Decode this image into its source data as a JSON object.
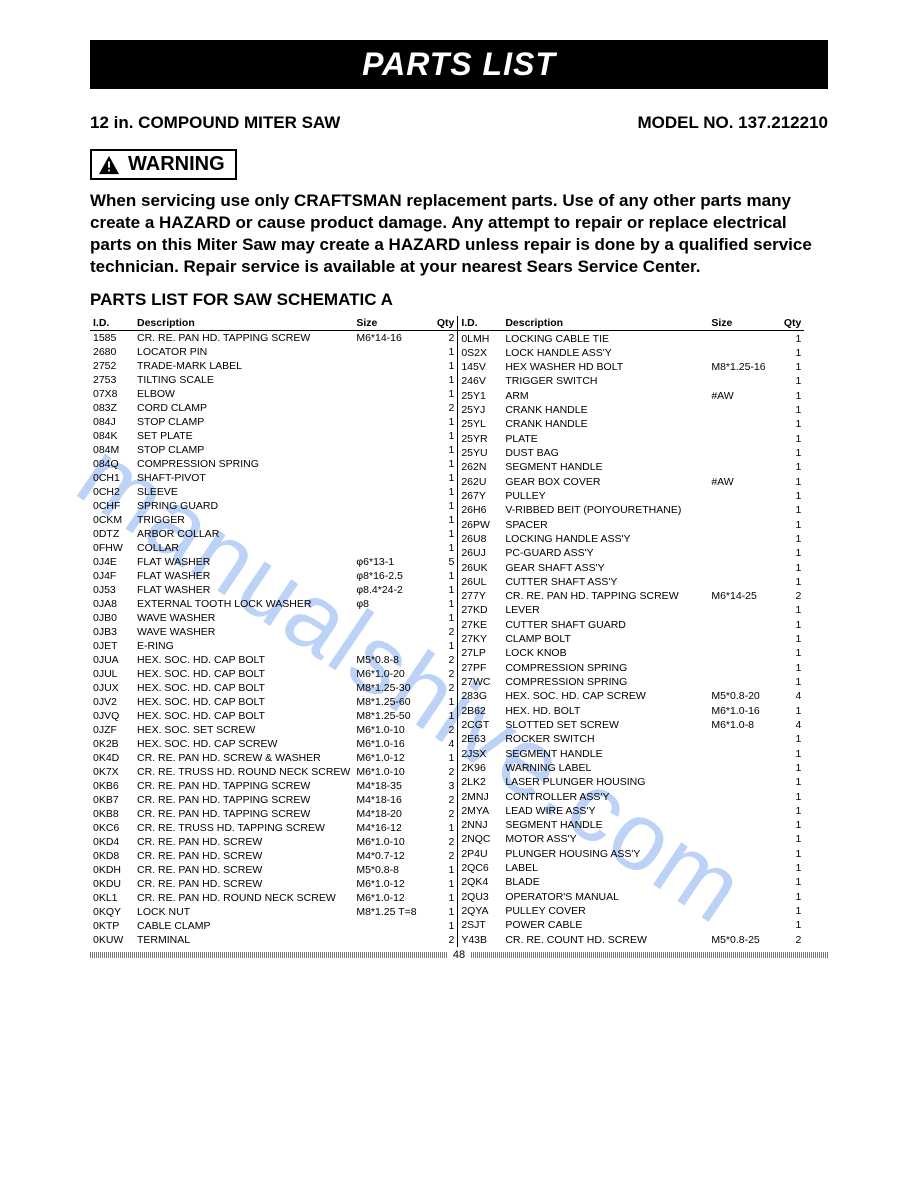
{
  "header": {
    "title": "PARTS LIST",
    "product": "12 in. COMPOUND MITER SAW",
    "model_label": "MODEL NO. 137.212210"
  },
  "warning": {
    "label": "WARNING",
    "text": "When servicing use only CRAFTSMAN replacement parts. Use of any other parts many create a HAZARD or cause product damage. Any attempt to repair or replace electrical parts on this Miter Saw may create a HAZARD unless repair is done by a qualified service technician. Repair service is available at your nearest Sears Service Center."
  },
  "schematic_title": "PARTS LIST FOR SAW SCHEMATIC A",
  "columns": {
    "id": "I.D.",
    "desc": "Description",
    "size": "Size",
    "qty": "Qty"
  },
  "left": [
    {
      "id": "1585",
      "desc": "CR. RE. PAN HD. TAPPING SCREW",
      "size": "M6*14-16",
      "qty": "2"
    },
    {
      "id": "2680",
      "desc": "LOCATOR PIN",
      "size": "",
      "qty": "1"
    },
    {
      "id": "2752",
      "desc": "TRADE-MARK LABEL",
      "size": "",
      "qty": "1"
    },
    {
      "id": "2753",
      "desc": "TILTING SCALE",
      "size": "",
      "qty": "1"
    },
    {
      "id": "07X8",
      "desc": "ELBOW",
      "size": "",
      "qty": "1"
    },
    {
      "id": "083Z",
      "desc": "CORD CLAMP",
      "size": "",
      "qty": "2"
    },
    {
      "id": "084J",
      "desc": "STOP CLAMP",
      "size": "",
      "qty": "1"
    },
    {
      "id": "084K",
      "desc": "SET PLATE",
      "size": "",
      "qty": "1"
    },
    {
      "id": "084M",
      "desc": "STOP CLAMP",
      "size": "",
      "qty": "1"
    },
    {
      "id": "084Q",
      "desc": "COMPRESSION SPRING",
      "size": "",
      "qty": "1"
    },
    {
      "id": "0CH1",
      "desc": "SHAFT-PIVOT",
      "size": "",
      "qty": "1"
    },
    {
      "id": "0CH2",
      "desc": "SLEEVE",
      "size": "",
      "qty": "1"
    },
    {
      "id": "0CHF",
      "desc": "SPRING GUARD",
      "size": "",
      "qty": "1"
    },
    {
      "id": "0CKM",
      "desc": "TRIGGER",
      "size": "",
      "qty": "1"
    },
    {
      "id": "0DTZ",
      "desc": "ARBOR COLLAR",
      "size": "",
      "qty": "1"
    },
    {
      "id": "0FHW",
      "desc": "COLLAR",
      "size": "",
      "qty": "1"
    },
    {
      "id": "0J4E",
      "desc": "FLAT WASHER",
      "size": "φ6*13-1",
      "qty": "5"
    },
    {
      "id": "0J4F",
      "desc": "FLAT WASHER",
      "size": "φ8*16-2.5",
      "qty": "1"
    },
    {
      "id": "0J53",
      "desc": "FLAT WASHER",
      "size": "φ8.4*24-2",
      "qty": "1"
    },
    {
      "id": "0JA8",
      "desc": "EXTERNAL TOOTH LOCK WASHER",
      "size": "φ8",
      "qty": "1"
    },
    {
      "id": "0JB0",
      "desc": "WAVE WASHER",
      "size": "",
      "qty": "1"
    },
    {
      "id": "0JB3",
      "desc": "WAVE WASHER",
      "size": "",
      "qty": "2"
    },
    {
      "id": "0JET",
      "desc": "E-RING",
      "size": "",
      "qty": "1"
    },
    {
      "id": "0JUA",
      "desc": "HEX. SOC. HD. CAP BOLT",
      "size": "M5*0.8-8",
      "qty": "2"
    },
    {
      "id": "0JUL",
      "desc": "HEX. SOC. HD. CAP BOLT",
      "size": "M6*1.0-20",
      "qty": "2"
    },
    {
      "id": "0JUX",
      "desc": "HEX. SOC. HD. CAP BOLT",
      "size": "M8*1.25-30",
      "qty": "2"
    },
    {
      "id": "0JV2",
      "desc": "HEX. SOC. HD. CAP BOLT",
      "size": "M8*1.25-60",
      "qty": "1"
    },
    {
      "id": "0JVQ",
      "desc": "HEX. SOC. HD. CAP BOLT",
      "size": "M8*1.25-50",
      "qty": "1"
    },
    {
      "id": "0JZF",
      "desc": "HEX. SOC. SET SCREW",
      "size": "M6*1.0-10",
      "qty": "2"
    },
    {
      "id": "0K2B",
      "desc": "HEX. SOC. HD. CAP SCREW",
      "size": "M6*1.0-16",
      "qty": "4"
    },
    {
      "id": "0K4D",
      "desc": "CR. RE. PAN HD. SCREW & WASHER",
      "size": "M6*1.0-12",
      "qty": "1"
    },
    {
      "id": "0K7X",
      "desc": "CR. RE. TRUSS HD. ROUND NECK SCREW",
      "size": "M6*1.0-10",
      "qty": "2"
    },
    {
      "id": "0KB6",
      "desc": "CR. RE. PAN HD. TAPPING SCREW",
      "size": "M4*18-35",
      "qty": "3"
    },
    {
      "id": "0KB7",
      "desc": "CR. RE. PAN HD. TAPPING SCREW",
      "size": "M4*18-16",
      "qty": "2"
    },
    {
      "id": "0KB8",
      "desc": "CR. RE. PAN HD. TAPPING SCREW",
      "size": "M4*18-20",
      "qty": "2"
    },
    {
      "id": "0KC6",
      "desc": "CR. RE. TRUSS HD. TAPPING SCREW",
      "size": "M4*16-12",
      "qty": "1"
    },
    {
      "id": "0KD4",
      "desc": "CR. RE. PAN HD. SCREW",
      "size": "M6*1.0-10",
      "qty": "2"
    },
    {
      "id": "0KD8",
      "desc": "CR. RE. PAN HD. SCREW",
      "size": "M4*0.7-12",
      "qty": "2"
    },
    {
      "id": "0KDH",
      "desc": "CR. RE. PAN HD. SCREW",
      "size": "M5*0.8-8",
      "qty": "1"
    },
    {
      "id": "0KDU",
      "desc": "CR. RE. PAN HD. SCREW",
      "size": "M6*1.0-12",
      "qty": "1"
    },
    {
      "id": "0KL1",
      "desc": "CR. RE. PAN HD. ROUND NECK SCREW",
      "size": "M6*1.0-12",
      "qty": "1"
    },
    {
      "id": "0KQY",
      "desc": "LOCK NUT",
      "size": "M8*1.25 T=8",
      "qty": "1"
    },
    {
      "id": "0KTP",
      "desc": "CABLE CLAMP",
      "size": "",
      "qty": "1"
    },
    {
      "id": "0KUW",
      "desc": "TERMINAL",
      "size": "",
      "qty": "2"
    }
  ],
  "right": [
    {
      "id": "0LMH",
      "desc": "LOCKING CABLE TIE",
      "size": "",
      "qty": "1"
    },
    {
      "id": "0S2X",
      "desc": "LOCK HANDLE ASS'Y",
      "size": "",
      "qty": "1"
    },
    {
      "id": "145V",
      "desc": "HEX WASHER HD BOLT",
      "size": "M8*1.25-16",
      "qty": "1"
    },
    {
      "id": "246V",
      "desc": "TRIGGER SWITCH",
      "size": "",
      "qty": "1"
    },
    {
      "id": "25Y1",
      "desc": "ARM",
      "size": "#AW",
      "qty": "1"
    },
    {
      "id": "25YJ",
      "desc": "CRANK HANDLE",
      "size": "",
      "qty": "1"
    },
    {
      "id": "25YL",
      "desc": "CRANK HANDLE",
      "size": "",
      "qty": "1"
    },
    {
      "id": "25YR",
      "desc": "PLATE",
      "size": "",
      "qty": "1"
    },
    {
      "id": "25YU",
      "desc": "DUST BAG",
      "size": "",
      "qty": "1"
    },
    {
      "id": "262N",
      "desc": "SEGMENT HANDLE",
      "size": "",
      "qty": "1"
    },
    {
      "id": "262U",
      "desc": "GEAR BOX COVER",
      "size": "#AW",
      "qty": "1"
    },
    {
      "id": "267Y",
      "desc": "PULLEY",
      "size": "",
      "qty": "1"
    },
    {
      "id": "26H6",
      "desc": "V-RIBBED BEIT (POIYOURETHANE)",
      "size": "",
      "qty": "1"
    },
    {
      "id": "26PW",
      "desc": "SPACER",
      "size": "",
      "qty": "1"
    },
    {
      "id": "26U8",
      "desc": "LOCKING HANDLE ASS'Y",
      "size": "",
      "qty": "1"
    },
    {
      "id": "26UJ",
      "desc": "PC-GUARD ASS'Y",
      "size": "",
      "qty": "1"
    },
    {
      "id": "26UK",
      "desc": "GEAR SHAFT ASS'Y",
      "size": "",
      "qty": "1"
    },
    {
      "id": "26UL",
      "desc": "CUTTER SHAFT ASS'Y",
      "size": "",
      "qty": "1"
    },
    {
      "id": "277Y",
      "desc": "CR. RE. PAN HD. TAPPING SCREW",
      "size": "M6*14-25",
      "qty": "2"
    },
    {
      "id": "27KD",
      "desc": "LEVER",
      "size": "",
      "qty": "1"
    },
    {
      "id": "27KE",
      "desc": "CUTTER SHAFT GUARD",
      "size": "",
      "qty": "1"
    },
    {
      "id": "27KY",
      "desc": "CLAMP BOLT",
      "size": "",
      "qty": "1"
    },
    {
      "id": "27LP",
      "desc": "LOCK KNOB",
      "size": "",
      "qty": "1"
    },
    {
      "id": "27PF",
      "desc": "COMPRESSION SPRING",
      "size": "",
      "qty": "1"
    },
    {
      "id": "27WC",
      "desc": "COMPRESSION SPRING",
      "size": "",
      "qty": "1"
    },
    {
      "id": "283G",
      "desc": "HEX. SOC. HD. CAP SCREW",
      "size": "M5*0.8-20",
      "qty": "4"
    },
    {
      "id": "2B62",
      "desc": "HEX. HD. BOLT",
      "size": "M6*1.0-16",
      "qty": "1"
    },
    {
      "id": "2CGT",
      "desc": "SLOTTED SET SCREW",
      "size": "M6*1.0-8",
      "qty": "4"
    },
    {
      "id": "2E63",
      "desc": "ROCKER SWITCH",
      "size": "",
      "qty": "1"
    },
    {
      "id": "2JSX",
      "desc": "SEGMENT HANDLE",
      "size": "",
      "qty": "1"
    },
    {
      "id": "2K96",
      "desc": "WARNING LABEL",
      "size": "",
      "qty": "1"
    },
    {
      "id": "2LK2",
      "desc": "LASER PLUNGER HOUSING",
      "size": "",
      "qty": "1"
    },
    {
      "id": "2MNJ",
      "desc": "CONTROLLER ASS'Y",
      "size": "",
      "qty": "1"
    },
    {
      "id": "2MYA",
      "desc": "LEAD WIRE ASS'Y",
      "size": "",
      "qty": "1"
    },
    {
      "id": "2NNJ",
      "desc": "SEGMENT HANDLE",
      "size": "",
      "qty": "1"
    },
    {
      "id": "2NQC",
      "desc": "MOTOR ASS'Y",
      "size": "",
      "qty": "1"
    },
    {
      "id": "2P4U",
      "desc": "PLUNGER HOUSING ASS'Y",
      "size": "",
      "qty": "1"
    },
    {
      "id": "2QC6",
      "desc": "LABEL",
      "size": "",
      "qty": "1"
    },
    {
      "id": "2QK4",
      "desc": "BLADE",
      "size": "",
      "qty": "1"
    },
    {
      "id": "2QU3",
      "desc": "OPERATOR'S MANUAL",
      "size": "",
      "qty": "1"
    },
    {
      "id": "2QYA",
      "desc": "PULLEY COVER",
      "size": "",
      "qty": "1"
    },
    {
      "id": "2SJT",
      "desc": "POWER CABLE",
      "size": "",
      "qty": "1"
    },
    {
      "id": "Y43B",
      "desc": "CR. RE. COUNT HD. SCREW",
      "size": "M5*0.8-25",
      "qty": "2"
    }
  ],
  "page_number": "48",
  "watermark": "manualshive.com"
}
